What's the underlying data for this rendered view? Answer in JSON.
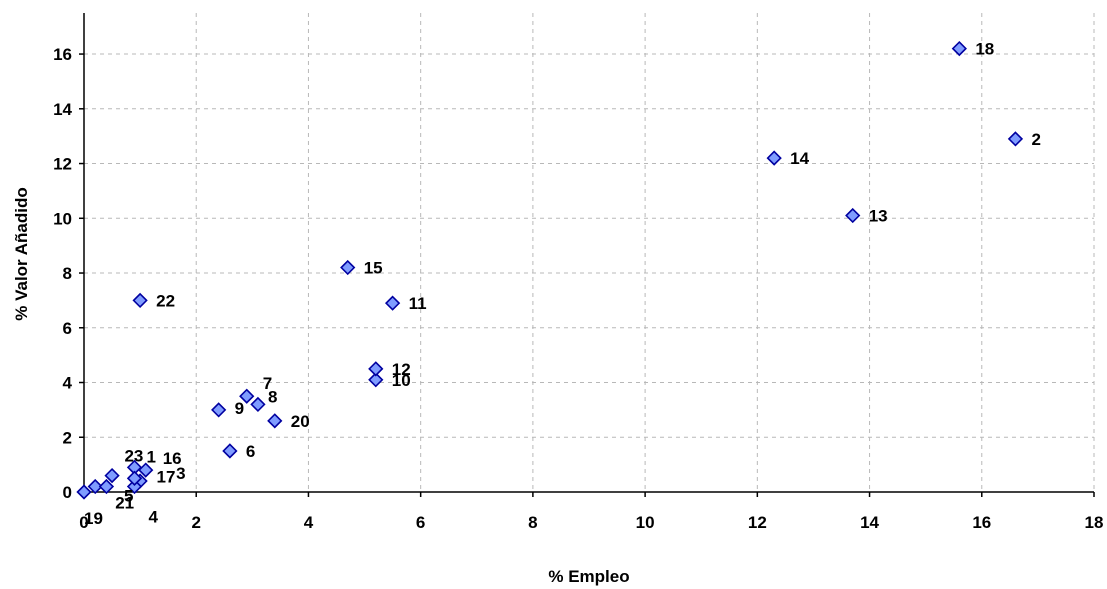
{
  "chart_data": {
    "type": "scatter",
    "title": "",
    "xlabel": "% Empleo",
    "ylabel": "% Valor Añadido",
    "xlim": [
      0,
      18
    ],
    "ylim": [
      0,
      17.5
    ],
    "xticks": [
      0,
      2,
      4,
      6,
      8,
      10,
      12,
      14,
      16,
      18
    ],
    "yticks": [
      0,
      2,
      4,
      6,
      8,
      10,
      12,
      14,
      16
    ],
    "grid": true,
    "marker": "diamond",
    "colors": {
      "marker_fill": "#7f9cff",
      "marker_edge": "#0000a0",
      "grid": "#b8b8b8"
    },
    "points": [
      {
        "label": "1",
        "x": 0.9,
        "y": 0.9
      },
      {
        "label": "2",
        "x": 16.6,
        "y": 12.9
      },
      {
        "label": "3",
        "x": 1.0,
        "y": 0.4
      },
      {
        "label": "4",
        "x": 0.9,
        "y": 0.2
      },
      {
        "label": "5",
        "x": 0.5,
        "y": 0.6
      },
      {
        "label": "6",
        "x": 2.6,
        "y": 1.5
      },
      {
        "label": "7",
        "x": 2.9,
        "y": 3.5
      },
      {
        "label": "8",
        "x": 3.1,
        "y": 3.2
      },
      {
        "label": "9",
        "x": 2.4,
        "y": 3.0
      },
      {
        "label": "10",
        "x": 5.2,
        "y": 4.1
      },
      {
        "label": "11",
        "x": 5.5,
        "y": 6.9
      },
      {
        "label": "12",
        "x": 5.2,
        "y": 4.5
      },
      {
        "label": "13",
        "x": 13.7,
        "y": 10.1
      },
      {
        "label": "14",
        "x": 12.3,
        "y": 12.2
      },
      {
        "label": "15",
        "x": 4.7,
        "y": 8.2
      },
      {
        "label": "16",
        "x": 1.1,
        "y": 0.8
      },
      {
        "label": "17",
        "x": 0.9,
        "y": 0.5
      },
      {
        "label": "18",
        "x": 15.6,
        "y": 16.2
      },
      {
        "label": "19",
        "x": 0.0,
        "y": 0.0
      },
      {
        "label": "20",
        "x": 3.4,
        "y": 2.6
      },
      {
        "label": "21",
        "x": 0.2,
        "y": 0.2
      },
      {
        "label": "22",
        "x": 1.0,
        "y": 7.0
      },
      {
        "label": "23",
        "x": 0.4,
        "y": 0.2
      }
    ]
  }
}
